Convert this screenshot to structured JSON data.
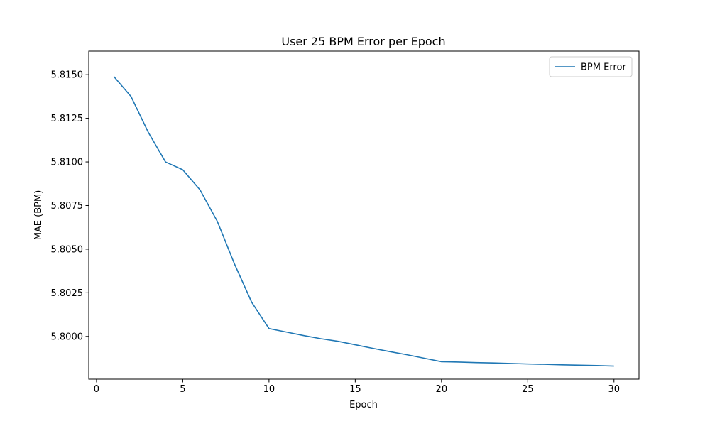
{
  "chart_data": {
    "type": "line",
    "title": "User 25 BPM Error per Epoch",
    "xlabel": "Epoch",
    "ylabel": "MAE (BPM)",
    "xlim": [
      -0.45,
      31.45
    ],
    "ylim": [
      5.79755,
      5.81635
    ],
    "xticks": [
      0,
      5,
      10,
      15,
      20,
      25,
      30
    ],
    "yticks": [
      5.8,
      5.8025,
      5.805,
      5.8075,
      5.81,
      5.8125,
      5.815
    ],
    "ytick_labels": [
      "5.8000",
      "5.8025",
      "5.8050",
      "5.8075",
      "5.8100",
      "5.8125",
      "5.8150"
    ],
    "grid": false,
    "legend": {
      "position": "top-right"
    },
    "series": [
      {
        "name": "BPM Error",
        "color": "#1f77b4",
        "x": [
          1,
          2,
          3,
          4,
          5,
          6,
          7,
          8,
          9,
          10,
          11,
          12,
          13,
          14,
          15,
          16,
          17,
          18,
          19,
          20,
          21,
          22,
          23,
          24,
          25,
          26,
          27,
          28,
          29,
          30
        ],
        "y": [
          5.8149,
          5.81375,
          5.8117,
          5.81,
          5.80955,
          5.8084,
          5.8066,
          5.80415,
          5.80195,
          5.80045,
          5.80025,
          5.80005,
          5.79987,
          5.79972,
          5.79952,
          5.79932,
          5.79913,
          5.79895,
          5.79875,
          5.79855,
          5.79853,
          5.7985,
          5.79848,
          5.79845,
          5.79842,
          5.7984,
          5.79837,
          5.79835,
          5.79833,
          5.7983
        ]
      }
    ]
  }
}
